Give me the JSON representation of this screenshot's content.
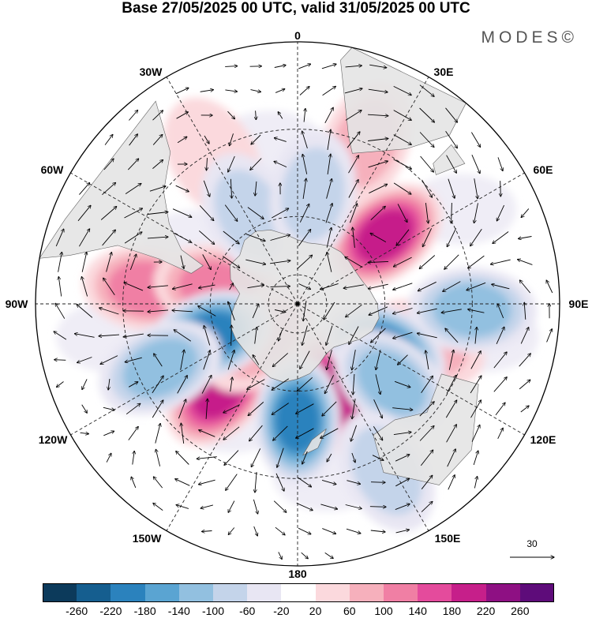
{
  "title": "Base 27/05/2025 00 UTC, valid 31/05/2025 00 UTC",
  "brand": "MODES©",
  "longitude_labels": {
    "lon_0": "0",
    "lon_30e": "30E",
    "lon_60e": "60E",
    "lon_90e": "90E",
    "lon_120e": "120E",
    "lon_150e": "150E",
    "lon_180": "180",
    "lon_150w": "150W",
    "lon_120w": "120W",
    "lon_90w": "90W",
    "lon_60w": "60W",
    "lon_30w": "30W"
  },
  "reference_vector": "30",
  "colorbar": {
    "colors": [
      "#0c3a5b",
      "#155e8f",
      "#2b82bd",
      "#5aa4d2",
      "#92c0e0",
      "#c4d4ea",
      "#e8e6f3",
      "#ffffff",
      "#fbd9dd",
      "#f6b0bc",
      "#f07fa4",
      "#e44b9c",
      "#c61f8a",
      "#8e1083",
      "#5e0c7a"
    ],
    "labels": [
      "-260",
      "-220",
      "-180",
      "-140",
      "-100",
      "-60",
      "-20",
      "20",
      "60",
      "100",
      "140",
      "180",
      "220",
      "260"
    ]
  },
  "anomaly_centres": [
    {
      "lon": 52,
      "lat": -52,
      "value": 180
    },
    {
      "lon": 157,
      "lat": -57,
      "value": 200
    },
    {
      "lon": -138,
      "lat": -50,
      "value": 200
    },
    {
      "lon": -84,
      "lat": -38,
      "value": 120
    },
    {
      "lon": -79,
      "lat": -62,
      "value": 100
    },
    {
      "lon": -132,
      "lat": -72,
      "value": 80
    },
    {
      "lon": 23,
      "lat": -30,
      "value": 60
    },
    {
      "lon": -30,
      "lat": -32,
      "value": 40
    },
    {
      "lon": 108,
      "lat": -45,
      "value": 60
    },
    {
      "lon": 92,
      "lat": -30,
      "value": -100
    },
    {
      "lon": 118,
      "lat": -56,
      "value": -180
    },
    {
      "lon": -110,
      "lat": -58,
      "value": -200
    },
    {
      "lon": 180,
      "lat": -50,
      "value": -200
    },
    {
      "lon": 130,
      "lat": -48,
      "value": -120
    },
    {
      "lon": -115,
      "lat": -38,
      "value": -100
    },
    {
      "lon": -28,
      "lat": -55,
      "value": -60
    },
    {
      "lon": 8,
      "lat": -52,
      "value": -60
    },
    {
      "lon": 152,
      "lat": -25,
      "value": -60
    }
  ]
}
